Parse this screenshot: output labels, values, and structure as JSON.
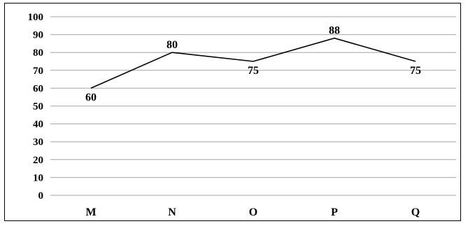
{
  "chart_data": {
    "type": "line",
    "title": "",
    "xlabel": "",
    "ylabel": "",
    "categories": [
      "M",
      "N",
      "O",
      "P",
      "Q"
    ],
    "series": [
      {
        "values": [
          60,
          80,
          75,
          88,
          75
        ]
      }
    ],
    "ylim": [
      0,
      100
    ],
    "yticks": [
      0,
      10,
      20,
      30,
      40,
      50,
      60,
      70,
      80,
      90,
      100
    ],
    "grid": true,
    "legend": "none",
    "data_labels": [
      "60",
      "80",
      "75",
      "88",
      "75"
    ],
    "colors": {
      "line": "#000000",
      "grid": "#a6a6a6"
    }
  }
}
